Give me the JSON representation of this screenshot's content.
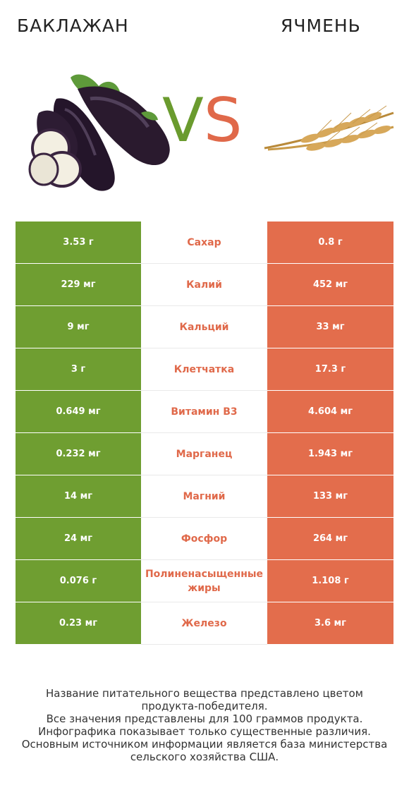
{
  "header": {
    "left_title": "БАКЛАЖАН",
    "right_title": "ЯЧМЕНЬ",
    "vs_v": "V",
    "vs_s": "S"
  },
  "colors": {
    "left": "#6f9e31",
    "right": "#e36d4c",
    "label": "#e0694a"
  },
  "rows": [
    {
      "left": "3.53 г",
      "label": "Сахар",
      "right": "0.8 г",
      "winner": "right"
    },
    {
      "left": "229 мг",
      "label": "Калий",
      "right": "452 мг",
      "winner": "right"
    },
    {
      "left": "9 мг",
      "label": "Кальций",
      "right": "33 мг",
      "winner": "right"
    },
    {
      "left": "3 г",
      "label": "Клетчатка",
      "right": "17.3 г",
      "winner": "right"
    },
    {
      "left": "0.649 мг",
      "label": "Витамин B3",
      "right": "4.604 мг",
      "winner": "right"
    },
    {
      "left": "0.232 мг",
      "label": "Марганец",
      "right": "1.943 мг",
      "winner": "right"
    },
    {
      "left": "14 мг",
      "label": "Магний",
      "right": "133 мг",
      "winner": "right"
    },
    {
      "left": "24 мг",
      "label": "Фосфор",
      "right": "264 мг",
      "winner": "right"
    },
    {
      "left": "0.076 г",
      "label": "Полиненасыщенные жиры",
      "right": "1.108 г",
      "winner": "right"
    },
    {
      "left": "0.23 мг",
      "label": "Железо",
      "right": "3.6 мг",
      "winner": "right"
    }
  ],
  "footer": {
    "line1": "Название питательного вещества представлено цветом",
    "line2": "продукта-победителя.",
    "line3": "Все значения представлены для 100 граммов продукта.",
    "line4": "Инфографика показывает только существенные различия.",
    "line5": "Основным источником информации является база министерства",
    "line6": "сельского хозяйства США."
  }
}
